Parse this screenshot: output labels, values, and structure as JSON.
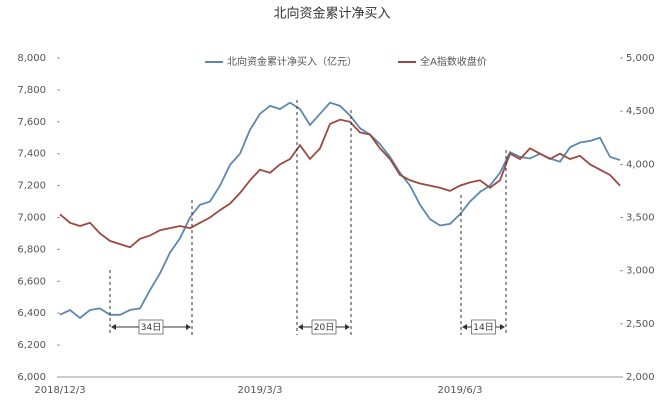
{
  "chart_data": {
    "type": "line",
    "title": "北向资金累计净买入",
    "categories": [
      "2018/12/3",
      null,
      null,
      null,
      null,
      null,
      null,
      null,
      null,
      null,
      null,
      null,
      null,
      null,
      null,
      null,
      null,
      null,
      null,
      null,
      "2019/3/3",
      null,
      null,
      null,
      null,
      null,
      null,
      null,
      null,
      null,
      null,
      null,
      null,
      null,
      null,
      null,
      null,
      null,
      null,
      null,
      "2019/6/3",
      null,
      null,
      null,
      null,
      null,
      null,
      null,
      null,
      null,
      null,
      null,
      null,
      null,
      null,
      null,
      null
    ],
    "series": [
      {
        "name": "北向资金累计净买入（亿元）",
        "color": "#5b87b0",
        "axis": "y",
        "values": [
          6390,
          6420,
          6370,
          6420,
          6430,
          6390,
          6390,
          6420,
          6430,
          6545,
          6650,
          6780,
          6870,
          7000,
          7080,
          7100,
          7200,
          7330,
          7400,
          7550,
          7650,
          7700,
          7680,
          7720,
          7680,
          7580,
          7650,
          7720,
          7700,
          7640,
          7560,
          7520,
          7460,
          7380,
          7280,
          7200,
          7080,
          6990,
          6950,
          6960,
          7020,
          7100,
          7160,
          7200,
          7280,
          7410,
          7380,
          7370,
          7400,
          7370,
          7350,
          7440,
          7470,
          7480,
          7500,
          7380,
          7360
        ]
      },
      {
        "name": "全A指数收盘价",
        "color": "#9a4a3e",
        "axis": "y2",
        "values": [
          3530,
          3450,
          3420,
          3450,
          3350,
          3280,
          3250,
          3220,
          3300,
          3330,
          3380,
          3400,
          3420,
          3400,
          3450,
          3500,
          3570,
          3630,
          3730,
          3850,
          3950,
          3920,
          4000,
          4050,
          4180,
          4050,
          4150,
          4380,
          4420,
          4400,
          4300,
          4280,
          4150,
          4050,
          3900,
          3850,
          3820,
          3800,
          3780,
          3750,
          3800,
          3830,
          3850,
          3780,
          3850,
          4100,
          4050,
          4150,
          4100,
          4050,
          4100,
          4050,
          4080,
          4000,
          3950,
          3900,
          3800
        ]
      }
    ],
    "ylim": [
      6000,
      8000
    ],
    "yticks": [
      {
        "value": 6000,
        "label": "6,000"
      },
      {
        "value": 6200,
        "label": "6,200"
      },
      {
        "value": 6400,
        "label": "6,400"
      },
      {
        "value": 6600,
        "label": "6,600"
      },
      {
        "value": 6800,
        "label": "6,800"
      },
      {
        "value": 7000,
        "label": "7,000"
      },
      {
        "value": 7200,
        "label": "7,200"
      },
      {
        "value": 7400,
        "label": "7,400"
      },
      {
        "value": 7600,
        "label": "7,600"
      },
      {
        "value": 7800,
        "label": "7,800"
      },
      {
        "value": 8000,
        "label": "8,000"
      }
    ],
    "y2lim": [
      2000,
      5000
    ],
    "y2ticks": [
      {
        "value": 2000,
        "label": "2,000"
      },
      {
        "value": 2500,
        "label": "2,500"
      },
      {
        "value": 3000,
        "label": "3,000"
      },
      {
        "value": 3500,
        "label": "3,500"
      },
      {
        "value": 4000,
        "label": "4,000"
      },
      {
        "value": 4500,
        "label": "4,500"
      },
      {
        "value": 5000,
        "label": "5,000"
      }
    ],
    "annotations": [
      "34日",
      "20日",
      "14日"
    ]
  }
}
